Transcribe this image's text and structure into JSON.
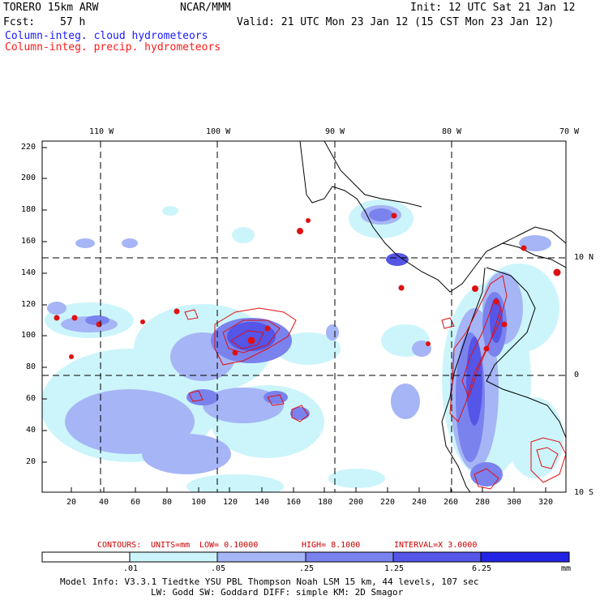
{
  "header": {
    "model": "TORERO  15km ARW",
    "org": "NCAR/MMM",
    "init": "Init: 12 UTC Sat 21 Jan 12",
    "fcst_label": "Fcst:",
    "fcst_value": "57 h",
    "valid": "Valid: 21 UTC Mon 23 Jan 12 (15 CST Mon 23 Jan 12)",
    "legend_cloud": "Column-integ. cloud hydrometeors",
    "legend_precip": "Column-integ. precip. hydrometeors"
  },
  "colors": {
    "cloud_legend": "#1a1aff",
    "precip_legend": "#ff1a1a",
    "contour": "#e01010",
    "shade_1": "#ccf5fb",
    "shade_2": "#a6b5f5",
    "shade_3": "#7a82ee",
    "shade_4": "#5555e8",
    "shade_5": "#2323e6"
  },
  "map": {
    "top_ticks": [
      "110 W",
      "100 W",
      "90 W",
      "80 W",
      "70 W"
    ],
    "right_ticks": [
      "10 N",
      "0",
      "10 S"
    ],
    "y_ticks": [
      "220",
      "200",
      "180",
      "160",
      "140",
      "120",
      "100",
      "80",
      "60",
      "40",
      "20"
    ],
    "x_ticks": [
      "20",
      "40",
      "60",
      "80",
      "100",
      "120",
      "140",
      "160",
      "180",
      "200",
      "220",
      "240",
      "260",
      "280",
      "300",
      "320"
    ]
  },
  "contour_info": {
    "contours_label": "CONTOURS:",
    "units": "UNITS=mm",
    "low": "LOW= 0.10000",
    "high": "HIGH=  8.1000",
    "interval": "INTERVAL=X  3.0000"
  },
  "colorbar": {
    "labels": [
      ".01",
      ".05",
      ".25",
      "1.25",
      "6.25"
    ],
    "unit": "mm"
  },
  "model_info": {
    "line1": "Model Info: V3.3.1   Tiedtke YSU PBL  Thompson    Noah LSM  15 km,   44 levels,  107 sec",
    "line2": "LW: Godd SW: Goddard DIFF: simple KM: 2D Smagor"
  }
}
